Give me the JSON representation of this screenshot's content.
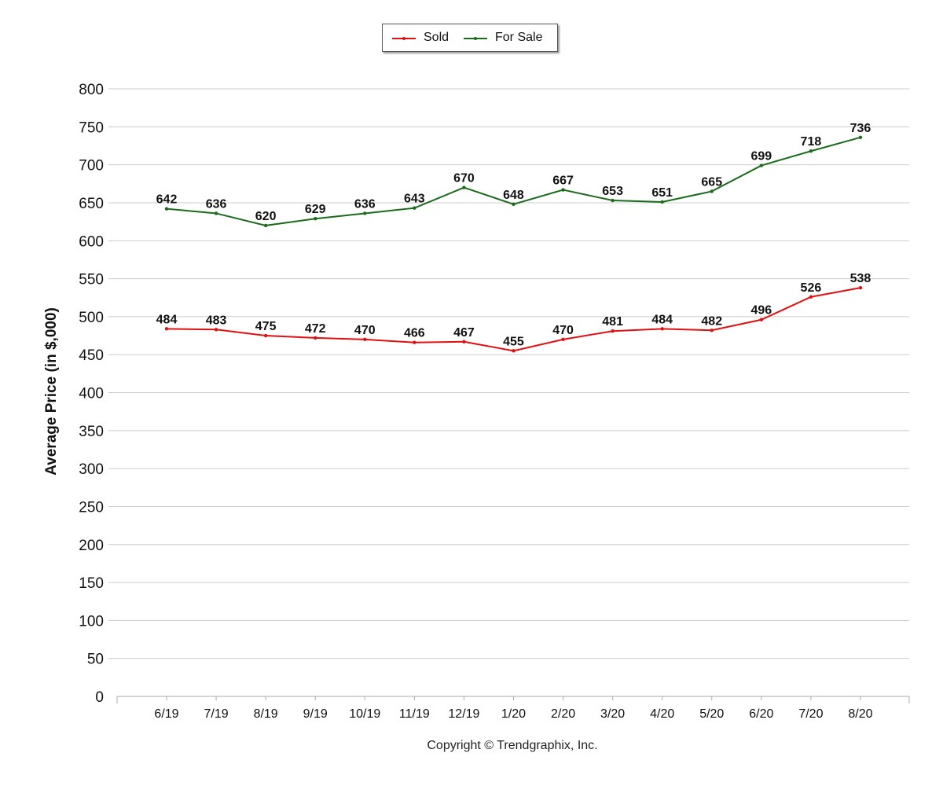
{
  "chart_data": {
    "type": "line",
    "categories": [
      "6/19",
      "7/19",
      "8/19",
      "9/19",
      "10/19",
      "11/19",
      "12/19",
      "1/20",
      "2/20",
      "3/20",
      "4/20",
      "5/20",
      "6/20",
      "7/20",
      "8/20"
    ],
    "series": [
      {
        "name": "Sold",
        "color": "#e01010",
        "values": [
          484,
          483,
          475,
          472,
          470,
          466,
          467,
          455,
          470,
          481,
          484,
          482,
          496,
          526,
          538
        ]
      },
      {
        "name": "For Sale",
        "color": "#1a6b1a",
        "values": [
          642,
          636,
          620,
          629,
          636,
          643,
          670,
          648,
          667,
          653,
          651,
          665,
          699,
          718,
          736
        ]
      }
    ],
    "title": "",
    "xlabel": "",
    "ylabel": "Average Price (in $,000)",
    "ylim": [
      0,
      800
    ],
    "yticks": [
      0,
      50,
      100,
      150,
      200,
      250,
      300,
      350,
      400,
      450,
      500,
      550,
      600,
      650,
      700,
      750,
      800
    ],
    "grid": true,
    "legend": "top-center",
    "data_labels": true
  },
  "footer": {
    "copyright": "Copyright © Trendgraphix, Inc."
  }
}
